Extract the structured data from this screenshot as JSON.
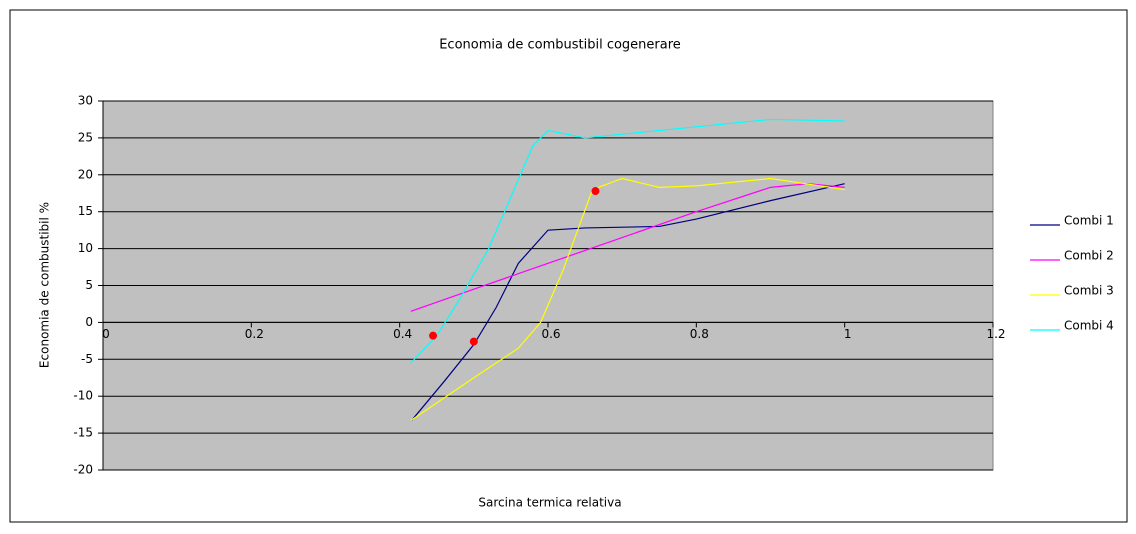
{
  "chart_data": {
    "type": "line",
    "title": "Economia de combustibil cogenerare",
    "xlabel": "Sarcina termica relativa",
    "ylabel": "Economia de combustibil %",
    "xlim": [
      0,
      1.2
    ],
    "xticks": [
      0,
      0.2,
      0.4,
      0.6,
      0.8,
      1,
      1.2
    ],
    "ylim": [
      -20,
      30
    ],
    "yticks": [
      -20,
      -15,
      -10,
      -5,
      0,
      5,
      10,
      15,
      20,
      25,
      30
    ],
    "grid": true,
    "legend": "right",
    "series": [
      {
        "name": "Combi 1",
        "color": "#000080",
        "x": [
          0.416,
          0.46,
          0.5,
          0.53,
          0.56,
          0.6,
          0.65,
          0.75,
          0.8,
          0.9,
          1.0
        ],
        "values": [
          -13.3,
          -8,
          -3,
          2,
          8,
          12.5,
          12.8,
          13,
          14,
          16.5,
          18.8
        ]
      },
      {
        "name": "Combi 2",
        "color": "#ff00ff",
        "x": [
          0.415,
          0.5,
          0.6,
          0.7,
          0.8,
          0.9,
          0.95,
          1.0
        ],
        "values": [
          1.5,
          4.5,
          8,
          11.5,
          15,
          18.3,
          18.8,
          18.3
        ]
      },
      {
        "name": "Combi 3",
        "color": "#ffff00",
        "x": [
          0.415,
          0.5,
          0.56,
          0.59,
          0.62,
          0.66,
          0.7,
          0.75,
          0.8,
          0.9,
          1.0
        ],
        "values": [
          -13.3,
          -7.5,
          -3.5,
          0,
          7,
          18,
          19.5,
          18.3,
          18.5,
          19.5,
          18
        ]
      },
      {
        "name": "Combi 4",
        "color": "#00ffff",
        "x": [
          0.415,
          0.45,
          0.48,
          0.52,
          0.55,
          0.58,
          0.6,
          0.65,
          0.7,
          0.8,
          0.9,
          1.0
        ],
        "values": [
          -5.5,
          -1.8,
          3,
          10,
          17,
          24,
          26,
          25,
          25.5,
          26.5,
          27.5,
          27.3
        ]
      }
    ],
    "markers": {
      "color": "#ff0000",
      "x": [
        0.445,
        0.5,
        0.664
      ],
      "values": [
        -1.8,
        -2.6,
        17.8
      ]
    }
  }
}
